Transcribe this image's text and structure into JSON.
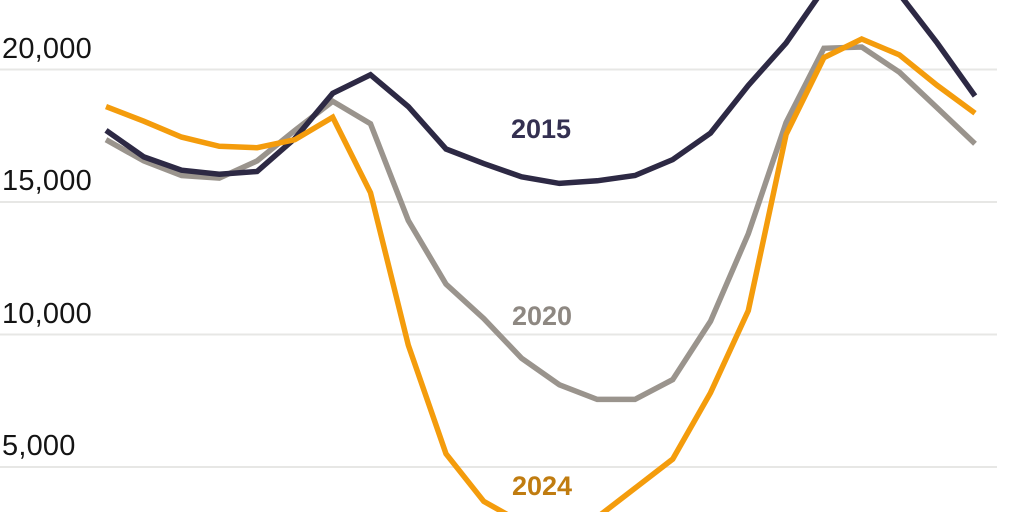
{
  "chart_data": {
    "type": "line",
    "x_point_count": 24,
    "x_axis": {
      "visible": false
    },
    "grid": "horizontal",
    "legend_position": "inline-on-chart",
    "y_axis": {
      "ticks": [
        {
          "value": 20000,
          "label": "20,000"
        },
        {
          "value": 15000,
          "label": "15,000"
        },
        {
          "value": 10000,
          "label": "10,000"
        },
        {
          "value": 5000,
          "label": "5,000"
        }
      ]
    },
    "ylim_visible": [
      3300,
      22600
    ],
    "series": [
      {
        "name": "2015",
        "label": "2015",
        "line_color": "#2d2944",
        "label_color": "#343051",
        "values": [
          17700,
          16700,
          16200,
          16050,
          16150,
          17400,
          19100,
          19800,
          18600,
          17000,
          16450,
          15950,
          15700,
          15800,
          16000,
          16600,
          17600,
          19400,
          21000,
          23050,
          23300,
          22850,
          21000,
          19000
        ]
      },
      {
        "name": "2020",
        "label": "2020",
        "line_color": "#9a948d",
        "label_color": "#8e8882",
        "values": [
          17350,
          16550,
          16000,
          15900,
          16550,
          17700,
          18800,
          17950,
          14300,
          11900,
          10600,
          9100,
          8100,
          7550,
          7550,
          8300,
          10500,
          13800,
          18000,
          20800,
          20850,
          19900,
          18550,
          17200
        ]
      },
      {
        "name": "2024",
        "label": "2024",
        "line_color": "#f49c0c",
        "label_color": "#c07c10",
        "values": [
          18600,
          18050,
          17450,
          17100,
          17050,
          17350,
          18200,
          15350,
          9600,
          5500,
          3700,
          2900,
          2750,
          3100,
          4200,
          5300,
          7800,
          10900,
          17550,
          20450,
          21150,
          20550,
          19400,
          18350
        ]
      }
    ],
    "gridline_color": "#e7e7e5"
  }
}
